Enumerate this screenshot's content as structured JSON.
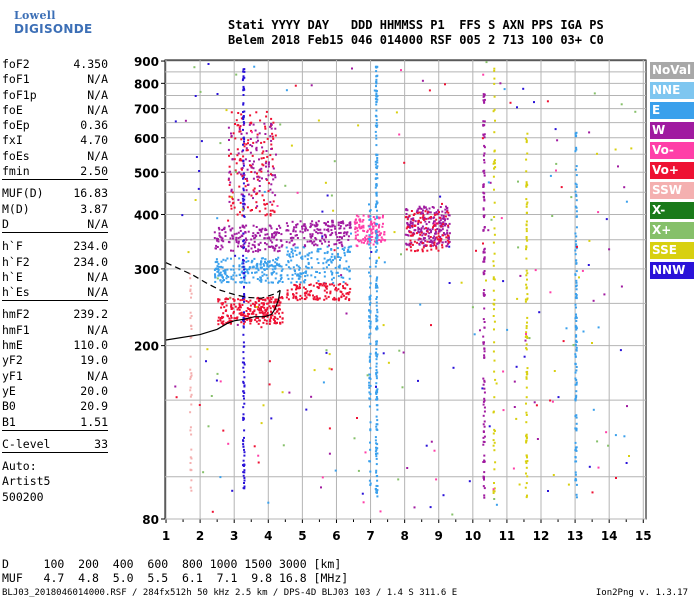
{
  "logo": {
    "line1": "Lowell",
    "line2": "DIGISONDE"
  },
  "header": {
    "line1": "Stati YYYY DAY   DDD HHMMSS P1  FFS S AXN PPS IGA PS",
    "line2": "Belem 2018 Feb15 046 014000 RSF 005 2 713 100 03+ C0"
  },
  "params": [
    {
      "label": "foF2",
      "value": "4.350"
    },
    {
      "label": "foF1",
      "value": "N/A"
    },
    {
      "label": "foF1p",
      "value": "N/A"
    },
    {
      "label": "foE",
      "value": "N/A"
    },
    {
      "label": "foEp",
      "value": "0.36"
    },
    {
      "label": "fxI",
      "value": "4.70"
    },
    {
      "label": "foEs",
      "value": "N/A"
    },
    {
      "label": "fmin",
      "value": "2.50",
      "sep": true
    },
    {
      "label": "MUF(D)",
      "value": "16.83"
    },
    {
      "label": "M(D)",
      "value": "3.87"
    },
    {
      "label": "D",
      "value": "N/A",
      "sep": true
    },
    {
      "label": "h`F",
      "value": "234.0"
    },
    {
      "label": "h`F2",
      "value": "234.0"
    },
    {
      "label": "h`E",
      "value": "N/A"
    },
    {
      "label": "h`Es",
      "value": "N/A",
      "sep": true
    },
    {
      "label": "hmF2",
      "value": "239.2"
    },
    {
      "label": "hmF1",
      "value": "N/A"
    },
    {
      "label": "hmE",
      "value": "110.0"
    },
    {
      "label": "yF2",
      "value": "19.0"
    },
    {
      "label": "yF1",
      "value": "N/A"
    },
    {
      "label": "yE",
      "value": "20.0"
    },
    {
      "label": "B0",
      "value": "20.9"
    },
    {
      "label": "B1",
      "value": "1.51",
      "sep": true
    },
    {
      "label": "C-level",
      "value": "33",
      "sep": true
    },
    {
      "label": "Auto:",
      "value": ""
    },
    {
      "label": "Artist5",
      "value": ""
    },
    {
      "label": "500200",
      "value": ""
    }
  ],
  "legend": [
    {
      "label": "NoVal",
      "color": "#a8a8a8"
    },
    {
      "label": "NNE",
      "color": "#7ec6f0"
    },
    {
      "label": "E",
      "color": "#3aa0ec"
    },
    {
      "label": "W",
      "color": "#a01aa0"
    },
    {
      "label": "Vo-",
      "color": "#ff3fa8"
    },
    {
      "label": "Vo+",
      "color": "#ee1133"
    },
    {
      "label": "SSW",
      "color": "#f4b0b0"
    },
    {
      "label": "X-",
      "color": "#1a7a1a"
    },
    {
      "label": "X+",
      "color": "#86c06a"
    },
    {
      "label": "SSE",
      "color": "#d8d010"
    },
    {
      "label": "NNW",
      "color": "#2a12d8"
    }
  ],
  "footer": {
    "line1": "D     100  200  400  600  800 1000 1500 3000 [km]",
    "line2": "MUF   4.7  4.8  5.0  5.5  6.1  7.1  9.8 16.8 [MHz]",
    "filename": "BLJ03_2018046014000.RSF / 284fx512h 50 kHz 2.5 km / DPS-4D BLJ03 103 / 1.4 S 311.6 E",
    "version": "Ion2Png v. 1.3.17"
  },
  "chart_data": {
    "type": "scatter",
    "title": "",
    "xlabel": "",
    "ylabel": "",
    "xlim": [
      0.97,
      15.08
    ],
    "ylim": [
      80,
      905
    ],
    "x_ticks": [
      1,
      2,
      3,
      4,
      5,
      6,
      7,
      8,
      9,
      10,
      11,
      12,
      13,
      14,
      15
    ],
    "y_ticks_labeled": [
      80,
      200,
      300,
      400,
      500,
      600,
      700,
      800,
      900
    ],
    "y_tick_labels": [
      "80",
      "200",
      "300",
      "400",
      "500",
      "600",
      "700",
      "800",
      "900"
    ],
    "grid": true,
    "traces": [
      {
        "name": "o-trace",
        "style": "solid",
        "x": [
          1.0,
          2.0,
          2.5,
          2.8,
          3.0,
          3.3,
          3.6,
          3.9,
          4.1,
          4.2,
          4.3,
          4.35
        ],
        "y": [
          206,
          212,
          218,
          225,
          228,
          230,
          233,
          233,
          236,
          243,
          255,
          268
        ]
      },
      {
        "name": "o-trace-dashed",
        "style": "dashed",
        "x": [
          1.0,
          1.4,
          1.8,
          2.2,
          2.6,
          3.0,
          3.4,
          3.8,
          4.2,
          4.35
        ],
        "y": [
          310,
          300,
          290,
          278,
          268,
          262,
          258,
          257,
          263,
          268
        ]
      }
    ],
    "echo_clusters": [
      {
        "x": [
          2.5,
          4.4
        ],
        "y": [
          225,
          260
        ],
        "series": "Vo+",
        "n": 260
      },
      {
        "x": [
          2.4,
          4.4
        ],
        "y": [
          280,
          320
        ],
        "series": "E",
        "n": 200
      },
      {
        "x": [
          2.4,
          4.4
        ],
        "y": [
          330,
          380
        ],
        "series": "W",
        "n": 160
      },
      {
        "x": [
          4.5,
          6.4
        ],
        "y": [
          280,
          340
        ],
        "series": "E",
        "n": 160
      },
      {
        "x": [
          4.5,
          6.4
        ],
        "y": [
          340,
          390
        ],
        "series": "W",
        "n": 160
      },
      {
        "x": [
          4.5,
          6.4
        ],
        "y": [
          255,
          280
        ],
        "series": "Vo+",
        "n": 120
      },
      {
        "x": [
          6.5,
          7.4
        ],
        "y": [
          340,
          400
        ],
        "series": "Vo-",
        "n": 120
      },
      {
        "x": [
          8.0,
          9.3
        ],
        "y": [
          340,
          420
        ],
        "series": "W",
        "n": 220
      },
      {
        "x": [
          8.0,
          9.3
        ],
        "y": [
          330,
          410
        ],
        "series": "Vo+",
        "n": 100
      },
      {
        "x": [
          2.8,
          4.2
        ],
        "y": [
          400,
          700
        ],
        "series": "Vo+",
        "n": 140
      },
      {
        "x": [
          2.8,
          4.2
        ],
        "y": [
          420,
          650
        ],
        "series": "W",
        "n": 100
      }
    ],
    "echo_columns": [
      {
        "x": 3.25,
        "y": [
          90,
          895
        ],
        "series": "NNW",
        "n": 140
      },
      {
        "x": 7.15,
        "y": [
          90,
          880
        ],
        "series": "E",
        "n": 200
      },
      {
        "x": 6.95,
        "y": [
          90,
          430
        ],
        "series": "E",
        "n": 80
      },
      {
        "x": 10.3,
        "y": [
          90,
          760
        ],
        "series": "W",
        "n": 120
      },
      {
        "x": 10.6,
        "y": [
          90,
          900
        ],
        "series": "SSE",
        "n": 60
      },
      {
        "x": 11.55,
        "y": [
          90,
          640
        ],
        "series": "SSE",
        "n": 90
      },
      {
        "x": 13.0,
        "y": [
          90,
          630
        ],
        "series": "E",
        "n": 120
      },
      {
        "x": 1.7,
        "y": [
          90,
          300
        ],
        "series": "SSW",
        "n": 40
      }
    ]
  }
}
